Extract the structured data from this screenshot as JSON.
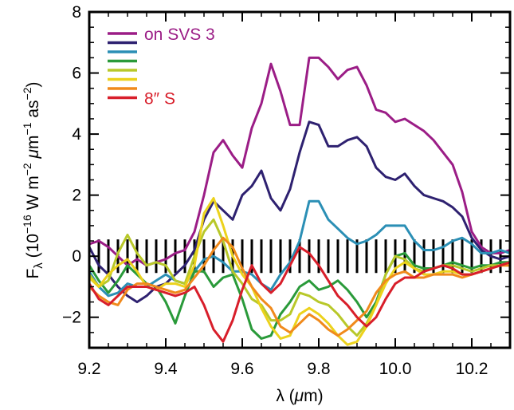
{
  "chart_data": {
    "type": "line",
    "xlabel": "λ (μm)",
    "ylabel": "F_λ (10^-16 W m^-2 μm^-1 as^-2)",
    "ylabel_parts": {
      "f": "F",
      "lambda_sub": "λ",
      "open": " (10",
      "e1": "−16",
      "mid1": " W m",
      "e2": "−2",
      "mid2": " ",
      "mu": "μ",
      "m": "m",
      "e3": "−1",
      "mid3": " as",
      "e4": "−2",
      "close": ")"
    },
    "xlim": [
      9.2,
      10.3
    ],
    "ylim": [
      -3,
      8
    ],
    "x_ticks": [
      9.2,
      9.4,
      9.6,
      9.8,
      10.0,
      10.2
    ],
    "x_tick_labels": [
      "9.2",
      "9.4",
      "9.6",
      "9.8",
      "10.0",
      "10.2"
    ],
    "y_ticks": [
      -2,
      0,
      2,
      4,
      6,
      8
    ],
    "y_tick_labels": [
      "−2",
      "0",
      "2",
      "4",
      "6",
      "8"
    ],
    "legend": {
      "position": "top-left",
      "first_label": "on SVS 3",
      "last_label": "8″ S"
    },
    "errorbar_halfheight": 0.55,
    "x": [
      9.2,
      9.225,
      9.25,
      9.275,
      9.3,
      9.325,
      9.35,
      9.375,
      9.4,
      9.425,
      9.45,
      9.475,
      9.5,
      9.525,
      9.55,
      9.575,
      9.6,
      9.625,
      9.65,
      9.675,
      9.7,
      9.725,
      9.75,
      9.775,
      9.8,
      9.825,
      9.85,
      9.875,
      9.9,
      9.925,
      9.95,
      9.975,
      10.0,
      10.025,
      10.05,
      10.075,
      10.1,
      10.125,
      10.15,
      10.175,
      10.2,
      10.225,
      10.25,
      10.275,
      10.3
    ],
    "series": [
      {
        "name": "on SVS 3",
        "color": "#9b1d86",
        "values": [
          0.4,
          0.5,
          0.3,
          0.0,
          -0.3,
          -0.1,
          -0.3,
          -0.2,
          -0.1,
          0.1,
          0.2,
          0.8,
          2.0,
          3.4,
          3.8,
          3.3,
          2.9,
          4.2,
          5.0,
          6.3,
          5.4,
          4.3,
          4.3,
          6.5,
          6.5,
          6.2,
          5.8,
          6.1,
          6.2,
          5.6,
          4.8,
          4.7,
          4.4,
          4.5,
          4.3,
          4.1,
          3.8,
          3.4,
          3.0,
          2.1,
          0.8,
          0.3,
          0.1,
          0.1,
          0.2
        ]
      },
      {
        "color": "#2e2170",
        "values": [
          0.3,
          -0.3,
          -0.6,
          -1.0,
          -1.3,
          -1.5,
          -1.3,
          -1.0,
          -0.9,
          -0.6,
          -0.3,
          0.2,
          1.2,
          1.8,
          1.5,
          1.2,
          2.0,
          2.3,
          2.8,
          1.9,
          1.5,
          2.2,
          3.4,
          4.4,
          4.3,
          3.6,
          3.6,
          3.8,
          3.9,
          3.6,
          2.9,
          2.6,
          2.5,
          2.7,
          2.3,
          2.0,
          1.9,
          1.8,
          1.6,
          1.3,
          0.6,
          0.2,
          0.0,
          -0.1,
          0.0
        ]
      },
      {
        "color": "#2b8fb5",
        "values": [
          -0.5,
          -1.0,
          -1.3,
          -1.2,
          -0.9,
          -1.0,
          -1.0,
          -0.8,
          -0.6,
          -0.8,
          -0.9,
          -0.5,
          -0.1,
          0.0,
          -0.2,
          -0.5,
          -0.5,
          -0.6,
          -0.9,
          -1.1,
          -0.6,
          -0.2,
          0.5,
          1.8,
          1.8,
          1.2,
          0.9,
          0.6,
          0.4,
          0.5,
          0.7,
          1.0,
          1.0,
          1.0,
          0.5,
          0.2,
          0.2,
          0.3,
          0.5,
          0.6,
          0.4,
          0.1,
          0.1,
          0.2,
          0.1
        ]
      },
      {
        "color": "#2a9a3a",
        "values": [
          -0.3,
          -0.8,
          -1.2,
          -0.8,
          -0.3,
          -0.6,
          -0.9,
          -1.0,
          -1.5,
          -2.2,
          -1.3,
          -0.5,
          -0.5,
          -1.0,
          -0.7,
          -0.6,
          -1.4,
          -2.4,
          -2.7,
          -2.6,
          -1.9,
          -1.5,
          -1.0,
          -0.8,
          -1.1,
          -1.0,
          -0.8,
          -1.1,
          -1.5,
          -2.0,
          -1.5,
          -0.6,
          0.0,
          0.1,
          -0.3,
          -0.4,
          -0.4,
          -0.3,
          -0.2,
          -0.3,
          -0.4,
          -0.3,
          -0.3,
          -0.2,
          -0.2
        ]
      },
      {
        "color": "#b8c82a",
        "values": [
          -0.6,
          -1.0,
          -0.8,
          0.1,
          0.7,
          0.1,
          -0.3,
          -0.2,
          -0.3,
          -0.8,
          -0.9,
          0.0,
          0.8,
          1.2,
          0.5,
          -0.5,
          -0.9,
          -1.4,
          -1.6,
          -2.1,
          -2.1,
          -1.9,
          -1.2,
          -1.3,
          -1.5,
          -1.6,
          -1.9,
          -2.3,
          -2.6,
          -2.2,
          -1.6,
          -0.6,
          0.0,
          -0.1,
          -0.4,
          -0.5,
          -0.4,
          -0.3,
          -0.3,
          -0.4,
          -0.5,
          -0.4,
          -0.3,
          -0.3,
          -0.2
        ]
      },
      {
        "color": "#ecd21c",
        "values": [
          -0.7,
          -1.0,
          -0.6,
          -0.3,
          -0.1,
          -0.5,
          -1.0,
          -1.1,
          -0.9,
          -0.9,
          -1.0,
          -0.3,
          1.4,
          1.9,
          1.0,
          0.0,
          -0.6,
          -1.0,
          -1.7,
          -2.3,
          -2.7,
          -2.6,
          -1.9,
          -1.7,
          -1.9,
          -2.2,
          -2.6,
          -2.9,
          -2.8,
          -2.3,
          -1.6,
          -0.9,
          -0.4,
          -0.2,
          -0.4,
          -0.6,
          -0.6,
          -0.5,
          -0.5,
          -0.6,
          -0.6,
          -0.5,
          -0.4,
          -0.3,
          -0.3
        ]
      },
      {
        "color": "#f08a1c",
        "values": [
          -1.0,
          -1.3,
          -1.5,
          -1.6,
          -1.1,
          -0.9,
          -0.9,
          -1.0,
          -1.1,
          -1.2,
          -1.1,
          -0.7,
          -0.3,
          0.2,
          0.6,
          0.3,
          -0.4,
          -1.0,
          -1.4,
          -1.7,
          -2.3,
          -2.5,
          -2.2,
          -1.9,
          -2.1,
          -2.4,
          -2.6,
          -2.4,
          -2.1,
          -1.8,
          -1.2,
          -0.8,
          -0.6,
          -0.5,
          -0.7,
          -0.7,
          -0.6,
          -0.6,
          -0.6,
          -0.7,
          -0.6,
          -0.5,
          -0.4,
          -0.3,
          -0.3
        ]
      },
      {
        "name": "8″ S",
        "color": "#d81e2a",
        "values": [
          -0.9,
          -1.4,
          -1.6,
          -1.3,
          -1.0,
          -1.0,
          -1.0,
          -1.1,
          -1.2,
          -1.3,
          -1.2,
          -1.0,
          -1.6,
          -2.4,
          -2.8,
          -2.1,
          -1.1,
          -0.3,
          -0.9,
          -1.2,
          -0.9,
          -0.3,
          0.3,
          0.1,
          -0.3,
          -0.8,
          -1.3,
          -1.6,
          -2.0,
          -2.3,
          -2.0,
          -1.4,
          -0.9,
          -0.7,
          -0.7,
          -0.5,
          -0.4,
          -0.3,
          -0.4,
          -0.6,
          -0.6,
          -0.5,
          -0.4,
          -0.3,
          -0.2
        ]
      }
    ]
  }
}
